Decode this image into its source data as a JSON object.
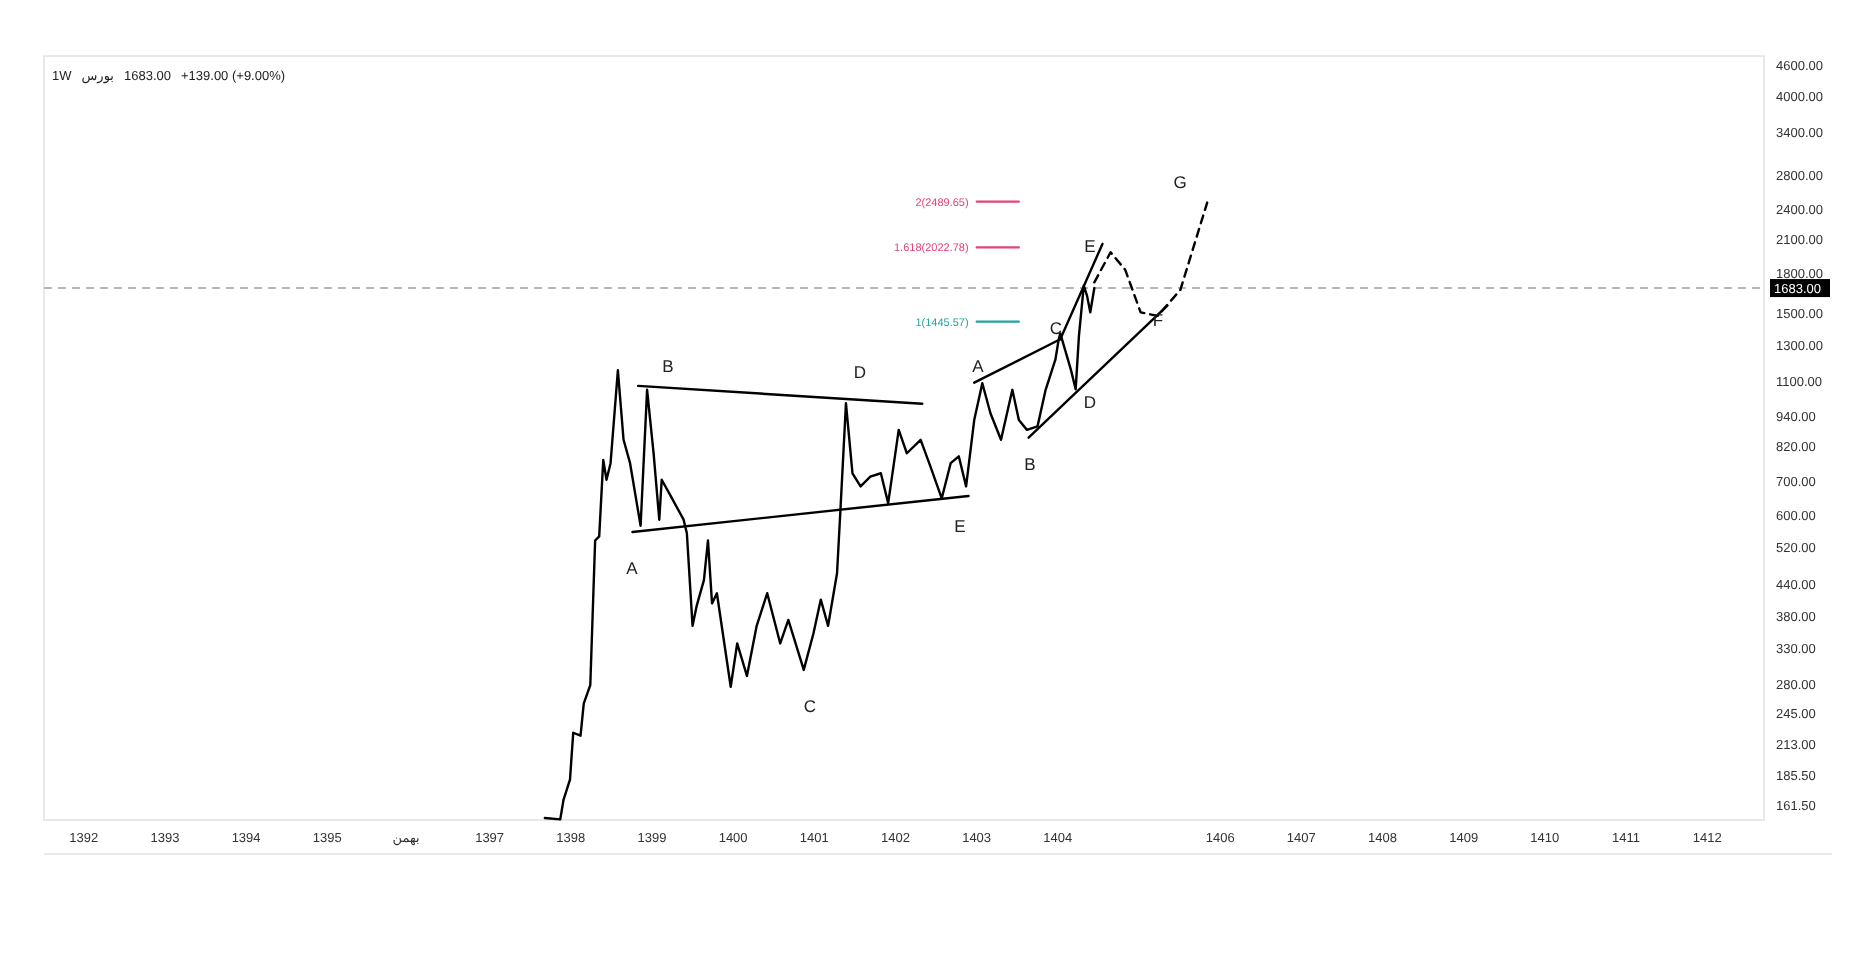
{
  "chart_data": {
    "type": "line",
    "title": "1W",
    "subtitle": "بورس",
    "log": "y",
    "xlim": [
      1391.51,
      1412.7
    ],
    "ylim": [
      151.6,
      4810
    ],
    "xticks": [
      {
        "value": 1392,
        "label": "1392"
      },
      {
        "value": 1393,
        "label": "1393"
      },
      {
        "value": 1394,
        "label": "1394"
      },
      {
        "value": 1395,
        "label": "1395"
      },
      {
        "value": 1395.97,
        "label": "بهمن"
      },
      {
        "value": 1397,
        "label": "1397"
      },
      {
        "value": 1398,
        "label": "1398"
      },
      {
        "value": 1399,
        "label": "1399"
      },
      {
        "value": 1400,
        "label": "1400"
      },
      {
        "value": 1401,
        "label": "1401"
      },
      {
        "value": 1402,
        "label": "1402"
      },
      {
        "value": 1403,
        "label": "1403"
      },
      {
        "value": 1404,
        "label": "1404"
      },
      {
        "value": 1406,
        "label": "1406"
      },
      {
        "value": 1407,
        "label": "1407"
      },
      {
        "value": 1408,
        "label": "1408"
      },
      {
        "value": 1409,
        "label": "1409"
      },
      {
        "value": 1410,
        "label": "1410"
      },
      {
        "value": 1411,
        "label": "1411"
      },
      {
        "value": 1412,
        "label": "1412"
      }
    ],
    "yticks": [
      {
        "value": 4600,
        "label": "4600.00"
      },
      {
        "value": 4000,
        "label": "4000.00"
      },
      {
        "value": 3400,
        "label": "3400.00"
      },
      {
        "value": 2800,
        "label": "2800.00"
      },
      {
        "value": 2400,
        "label": "2400.00"
      },
      {
        "value": 2100,
        "label": "2100.00"
      },
      {
        "value": 1800,
        "label": "1800.00"
      },
      {
        "value": 1500,
        "label": "1500.00"
      },
      {
        "value": 1300,
        "label": "1300.00"
      },
      {
        "value": 1100,
        "label": "1100.00"
      },
      {
        "value": 940,
        "label": "940.00"
      },
      {
        "value": 820,
        "label": "820.00"
      },
      {
        "value": 700,
        "label": "700.00"
      },
      {
        "value": 600,
        "label": "600.00"
      },
      {
        "value": 520,
        "label": "520.00"
      },
      {
        "value": 440,
        "label": "440.00"
      },
      {
        "value": 380,
        "label": "380.00"
      },
      {
        "value": 330,
        "label": "330.00"
      },
      {
        "value": 280,
        "label": "280.00"
      },
      {
        "value": 245,
        "label": "245.00"
      },
      {
        "value": 213,
        "label": "213.00"
      },
      {
        "value": 185.5,
        "label": "185.50"
      },
      {
        "value": 161.5,
        "label": "161.50"
      }
    ],
    "ref_lines": [
      {
        "axis": "y",
        "value": 1683,
        "label": "1683.00",
        "color": "#9e9e9e",
        "line_style": "dashed"
      }
    ],
    "annotations": [
      "1683.00",
      "+139.00 (+9.00%)",
      "A",
      "B",
      "C",
      "D",
      "E",
      "A",
      "B",
      "C",
      "D",
      "E",
      "F",
      "G"
    ],
    "series": [
      {
        "color": "#000000",
        "x": [
          1397.68,
          1397.87,
          1397.91,
          1397.99,
          1398.03,
          1398.12,
          1398.16,
          1398.24,
          1398.3,
          1398.35,
          1398.4,
          1398.44,
          1398.49,
          1398.58,
          1398.65,
          1398.73,
          1398.86,
          1398.94,
          1399.02,
          1399.09,
          1399.12,
          1399.23,
          1399.39,
          1399.43,
          1399.5,
          1399.55,
          1399.64,
          1399.69,
          1399.74,
          1399.8,
          1399.97,
          1400.05,
          1400.17,
          1400.29,
          1400.42,
          1400.58,
          1400.68,
          1400.87,
          1400.99,
          1401.08,
          1401.17,
          1401.28,
          1401.32,
          1401.39,
          1401.47,
          1401.57,
          1401.69,
          1401.82,
          1401.91,
          1402.04,
          1402.14,
          1402.31,
          1402.43,
          1402.57,
          1402.68,
          1402.78,
          1402.87,
          1402.97,
          1403.07,
          1403.17,
          1403.3,
          1403.44,
          1403.52,
          1403.62,
          1403.75,
          1403.85,
          1403.97,
          1404.01,
          1404.03,
          1404.16,
          1404.22,
          1404.26,
          1404.32,
          1404.36,
          1404.4,
          1404.45
        ],
        "values": [
          153,
          152,
          166,
          182,
          225,
          222,
          257,
          279,
          537,
          547,
          773,
          707,
          762,
          1160,
          847,
          762,
          574,
          1062,
          797,
          590,
          707,
          657,
          590,
          555,
          365,
          399,
          449,
          537,
          404,
          423,
          277,
          337,
          291,
          365,
          423,
          337,
          375,
          299,
          353,
          411,
          365,
          463,
          608,
          999,
          728,
          686,
          717,
          728,
          636,
          886,
          797,
          847,
          751,
          650,
          762,
          786,
          686,
          926,
          1094,
          955,
          847,
          1062,
          926,
          886,
          900,
          1062,
          1217,
          1331,
          1371,
          1165,
          1065,
          1354,
          1701,
          1625,
          1508,
          1683
        ]
      },
      {
        "color": "#000000",
        "x": [
          1398.83,
          1402.33
        ],
        "values": [
          1081,
          997
        ]
      },
      {
        "color": "#000000",
        "x": [
          1398.76,
          1402.9
        ],
        "values": [
          558,
          657
        ]
      },
      {
        "color": "#000000",
        "x": [
          1402.97,
          1404.03
        ],
        "values": [
          1097,
          1335
        ]
      },
      {
        "color": "#000000",
        "x": [
          1403.64,
          1405.35
        ],
        "values": [
          855,
          1554
        ]
      },
      {
        "color": "#000000",
        "x": [
          1404.03,
          1404.55
        ],
        "values": [
          1335,
          2055
        ]
      },
      {
        "color": "#000000",
        "line_style": "dashed",
        "x": [
          1404.45,
          1404.65,
          1404.83,
          1405.02,
          1405.23,
          1405.51,
          1405.84
        ],
        "values": [
          1727,
          1979,
          1829,
          1508,
          1484,
          1669,
          2478
        ]
      },
      {
        "name": "2(2489.65)",
        "color": "#e0457b",
        "x": [
          1403.0,
          1403.52
        ],
        "values": [
          2489.65,
          2489.65
        ]
      },
      {
        "name": "1.618(2022.78)",
        "color": "#e0457b",
        "x": [
          1403.0,
          1403.52
        ],
        "values": [
          2022.78,
          2022.78
        ]
      },
      {
        "name": "1(1445.57)",
        "color": "#22a39f",
        "x": [
          1403.0,
          1403.52
        ],
        "values": [
          1445.57,
          1445.57
        ]
      }
    ]
  }
}
